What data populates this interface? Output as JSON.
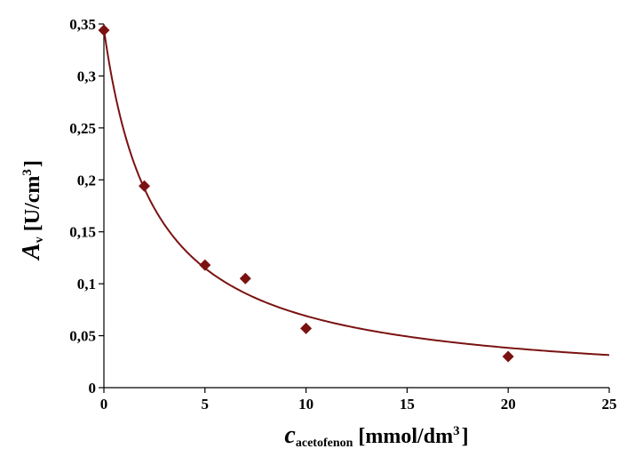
{
  "chart_data": {
    "type": "scatter",
    "title": "",
    "xlabel": {
      "symbol": "c",
      "subscript": "acetofenon",
      "unit_prefix": "[mmol/dm",
      "unit_power": "3",
      "unit_suffix": "]"
    },
    "ylabel": {
      "symbol": "A",
      "subscript": "v",
      "unit_prefix": "[U/cm",
      "unit_power": "3",
      "unit_suffix": "]"
    },
    "xlim": [
      0,
      25
    ],
    "ylim": [
      0,
      0.35
    ],
    "x_ticks": [
      0,
      5,
      10,
      15,
      20,
      25
    ],
    "x_tick_labels": [
      "0",
      "5",
      "10",
      "15",
      "20",
      "25"
    ],
    "y_ticks": [
      0,
      0.05,
      0.1,
      0.15,
      0.2,
      0.25,
      0.3,
      0.35
    ],
    "y_tick_labels": [
      "0",
      "0,05",
      "0,1",
      "0,15",
      "0,2",
      "0,25",
      "0,3",
      "0,35"
    ],
    "grid": false,
    "legend": "none",
    "series": [
      {
        "marker": "diamond",
        "color": "#7b1212",
        "points": [
          {
            "x": 0,
            "y": 0.344
          },
          {
            "x": 2,
            "y": 0.194
          },
          {
            "x": 5,
            "y": 0.118
          },
          {
            "x": 7,
            "y": 0.105
          },
          {
            "x": 10,
            "y": 0.057
          },
          {
            "x": 20,
            "y": 0.03
          }
        ]
      }
    ],
    "fit_curve": {
      "color": "#7b1212",
      "model": "y = a / (1 + x / K)",
      "a": 0.345,
      "K": 2.5,
      "x_range": [
        0,
        25
      ]
    }
  }
}
